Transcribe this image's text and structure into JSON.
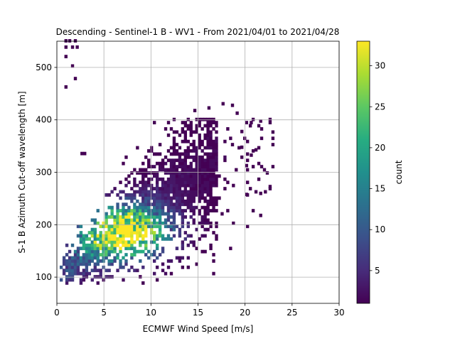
{
  "chart_data": {
    "type": "heatmap",
    "title": "Descending - Sentinel-1 B - WV1 - From 2021/04/01 to 2021/04/28",
    "xlabel": "ECMWF Wind Speed [m/s]",
    "ylabel": "S-1 B Azimuth Cut-off wavelength [m]",
    "xlim": [
      0,
      30
    ],
    "ylim": [
      50,
      550
    ],
    "x_ticks": [
      0,
      5,
      10,
      15,
      20,
      25,
      30
    ],
    "y_ticks": [
      100,
      200,
      300,
      400,
      500
    ],
    "grid": true,
    "bin_size": {
      "x": 0.3,
      "y": 6
    },
    "colormap": "viridis",
    "colorbar": {
      "label": "count",
      "min": 1,
      "max": 33,
      "ticks": [
        5,
        10,
        15,
        20,
        25,
        30
      ]
    },
    "distribution": {
      "ridge_intercept": 100,
      "ridge_slope": 13,
      "peak_center": [
        7.0,
        185
      ],
      "peak_count": 33
    },
    "outliers": [
      [
        0.8,
        548
      ],
      [
        1.2,
        548
      ],
      [
        1.8,
        548
      ],
      [
        0.8,
        536
      ],
      [
        1.5,
        536
      ],
      [
        2.0,
        536
      ],
      [
        0.8,
        518
      ],
      [
        1.5,
        500
      ],
      [
        1.8,
        476
      ],
      [
        0.8,
        460
      ],
      [
        2.5,
        333
      ],
      [
        2.8,
        333
      ],
      [
        14.5,
        415
      ],
      [
        16.0,
        420
      ],
      [
        17.5,
        428
      ],
      [
        18.5,
        425
      ],
      [
        19.0,
        410
      ],
      [
        20.0,
        392
      ],
      [
        20.5,
        392
      ],
      [
        21.5,
        395
      ],
      [
        19.5,
        375
      ],
      [
        18.0,
        380
      ],
      [
        20.5,
        330
      ],
      [
        21.0,
        340
      ],
      [
        20.0,
        310
      ],
      [
        21.5,
        257
      ],
      [
        22.0,
        260
      ],
      [
        22.5,
        270
      ],
      [
        21.5,
        215
      ],
      [
        20.0,
        255
      ],
      [
        18.5,
        350
      ],
      [
        19.5,
        345
      ]
    ]
  }
}
